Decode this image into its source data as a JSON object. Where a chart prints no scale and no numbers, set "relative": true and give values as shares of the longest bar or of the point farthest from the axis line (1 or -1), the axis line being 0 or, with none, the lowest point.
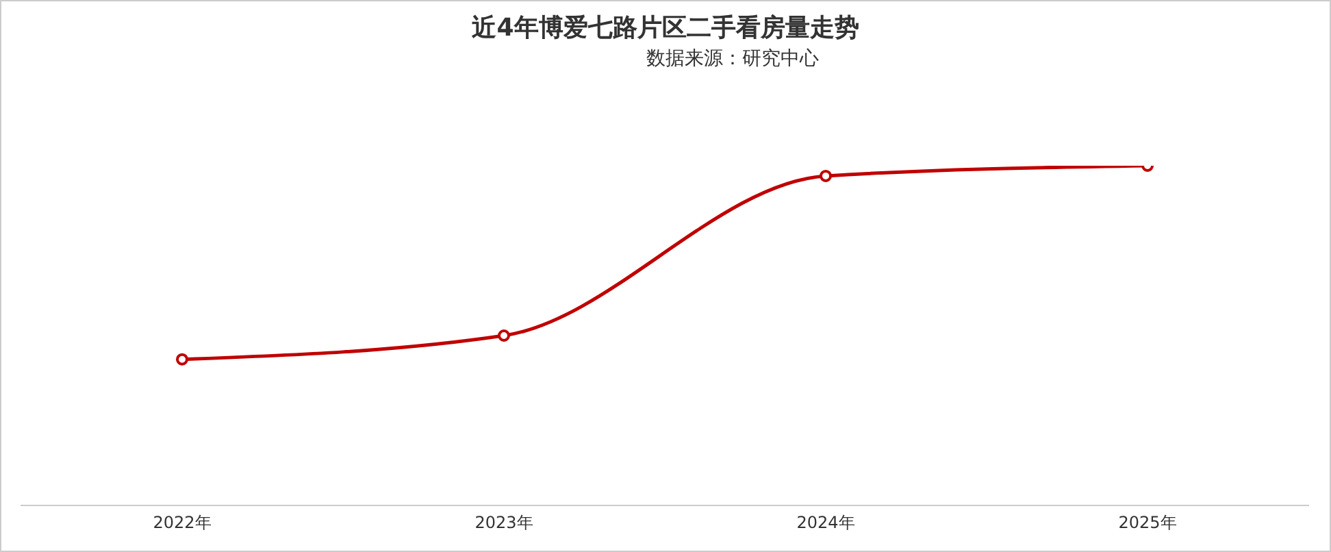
{
  "chart_data": {
    "type": "line",
    "title": "近4年博爱七路片区二手看房量走势",
    "subtitle": "数据来源：研究中心",
    "relative": true,
    "categories": [
      "2022年",
      "2023年",
      "2024年",
      "2025年"
    ],
    "series": [
      {
        "color": "#c00000",
        "values": [
          0.43,
          0.5,
          0.97,
          1
        ]
      }
    ],
    "marker": "circle"
  }
}
